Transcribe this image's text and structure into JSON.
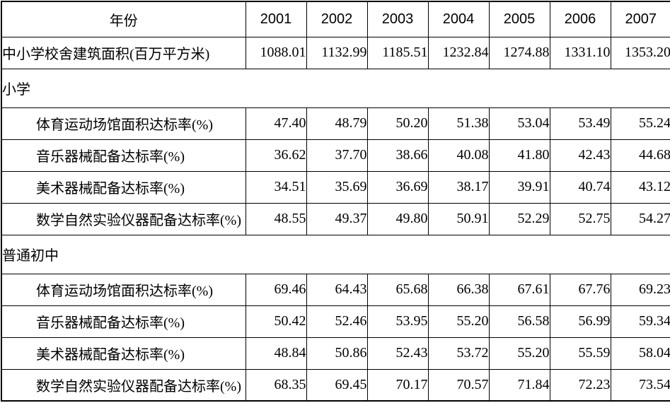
{
  "table": {
    "corner_label": "年份",
    "years": [
      "2001",
      "2002",
      "2003",
      "2004",
      "2005",
      "2006",
      "2007"
    ],
    "rows": [
      {
        "type": "data",
        "indent": false,
        "label": "中小学校舍建筑面积(百万平方米)",
        "values": [
          "1088.01",
          "1132.99",
          "1185.51",
          "1232.84",
          "1274.88",
          "1331.10",
          "1353.20"
        ]
      },
      {
        "type": "section",
        "label": "小学"
      },
      {
        "type": "data",
        "indent": true,
        "label": "体育运动场馆面积达标率(%)",
        "values": [
          "47.40",
          "48.79",
          "50.20",
          "51.38",
          "53.04",
          "53.49",
          "55.24"
        ]
      },
      {
        "type": "data",
        "indent": true,
        "label": "音乐器械配备达标率(%)",
        "values": [
          "36.62",
          "37.70",
          "38.66",
          "40.08",
          "41.80",
          "42.43",
          "44.68"
        ]
      },
      {
        "type": "data",
        "indent": true,
        "label": "美术器械配备达标率(%)",
        "values": [
          "34.51",
          "35.69",
          "36.69",
          "38.17",
          "39.91",
          "40.74",
          "43.12"
        ]
      },
      {
        "type": "data",
        "indent": true,
        "label": "数学自然实验仪器配备达标率(%)",
        "values": [
          "48.55",
          "49.37",
          "49.80",
          "50.91",
          "52.29",
          "52.75",
          "54.27"
        ]
      },
      {
        "type": "section",
        "label": "普通初中"
      },
      {
        "type": "data",
        "indent": true,
        "label": "体育运动场馆面积达标率(%)",
        "values": [
          "69.46",
          "64.43",
          "65.68",
          "66.38",
          "67.61",
          "67.76",
          "69.23"
        ]
      },
      {
        "type": "data",
        "indent": true,
        "label": "音乐器械配备达标率(%)",
        "values": [
          "50.42",
          "52.46",
          "53.95",
          "55.20",
          "56.58",
          "56.99",
          "59.34"
        ]
      },
      {
        "type": "data",
        "indent": true,
        "label": "美术器械配备达标率(%)",
        "values": [
          "48.84",
          "50.86",
          "52.43",
          "53.72",
          "55.20",
          "55.59",
          "58.04"
        ]
      },
      {
        "type": "data",
        "indent": true,
        "label": "数学自然实验仪器配备达标率(%)",
        "values": [
          "68.35",
          "69.45",
          "70.17",
          "70.57",
          "71.84",
          "72.23",
          "73.54"
        ]
      }
    ]
  },
  "chart_data": {
    "type": "table",
    "columns": [
      "年份",
      "2001",
      "2002",
      "2003",
      "2004",
      "2005",
      "2006",
      "2007"
    ],
    "rows": [
      {
        "label": "中小学校舍建筑面积(百万平方米)",
        "group": null,
        "values": [
          1088.01,
          1132.99,
          1185.51,
          1232.84,
          1274.88,
          1331.1,
          1353.2
        ]
      },
      {
        "label": "体育运动场馆面积达标率(%)",
        "group": "小学",
        "values": [
          47.4,
          48.79,
          50.2,
          51.38,
          53.04,
          53.49,
          55.24
        ]
      },
      {
        "label": "音乐器械配备达标率(%)",
        "group": "小学",
        "values": [
          36.62,
          37.7,
          38.66,
          40.08,
          41.8,
          42.43,
          44.68
        ]
      },
      {
        "label": "美术器械配备达标率(%)",
        "group": "小学",
        "values": [
          34.51,
          35.69,
          36.69,
          38.17,
          39.91,
          40.74,
          43.12
        ]
      },
      {
        "label": "数学自然实验仪器配备达标率(%)",
        "group": "小学",
        "values": [
          48.55,
          49.37,
          49.8,
          50.91,
          52.29,
          52.75,
          54.27
        ]
      },
      {
        "label": "体育运动场馆面积达标率(%)",
        "group": "普通初中",
        "values": [
          69.46,
          64.43,
          65.68,
          66.38,
          67.61,
          67.76,
          69.23
        ]
      },
      {
        "label": "音乐器械配备达标率(%)",
        "group": "普通初中",
        "values": [
          50.42,
          52.46,
          53.95,
          55.2,
          56.58,
          56.99,
          59.34
        ]
      },
      {
        "label": "美术器械配备达标率(%)",
        "group": "普通初中",
        "values": [
          48.84,
          50.86,
          52.43,
          53.72,
          55.2,
          55.59,
          58.04
        ]
      },
      {
        "label": "数学自然实验仪器配备达标率(%)",
        "group": "普通初中",
        "values": [
          68.35,
          69.45,
          70.17,
          70.57,
          71.84,
          72.23,
          73.54
        ]
      }
    ]
  }
}
